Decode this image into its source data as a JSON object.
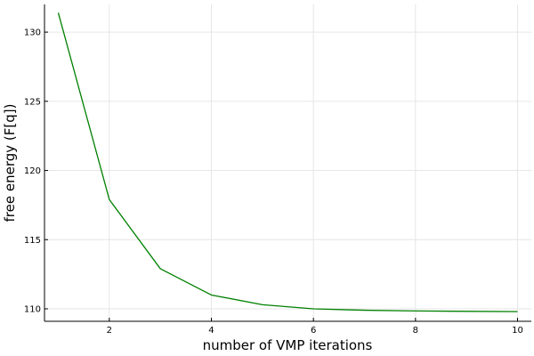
{
  "chart_data": {
    "type": "line",
    "title": "",
    "xlabel": "number of VMP iterations",
    "ylabel": "free energy (F[q])",
    "xlim": [
      0.73,
      10.27
    ],
    "ylim": [
      109.1,
      132.0
    ],
    "x_ticks": [
      2,
      4,
      6,
      8,
      10
    ],
    "y_ticks": [
      110,
      115,
      120,
      125,
      130
    ],
    "x_tick_labels": [
      "2",
      "4",
      "6",
      "8",
      "10"
    ],
    "y_tick_labels": [
      "110",
      "115",
      "120",
      "125",
      "130"
    ],
    "grid": true,
    "legend": "none",
    "series": [
      {
        "color": "#008000",
        "x": [
          1,
          2,
          3,
          4,
          5,
          6,
          7,
          8,
          9,
          10
        ],
        "y": [
          131.4,
          117.9,
          112.9,
          111.0,
          110.3,
          110.0,
          109.9,
          109.85,
          109.82,
          109.8
        ]
      }
    ]
  }
}
